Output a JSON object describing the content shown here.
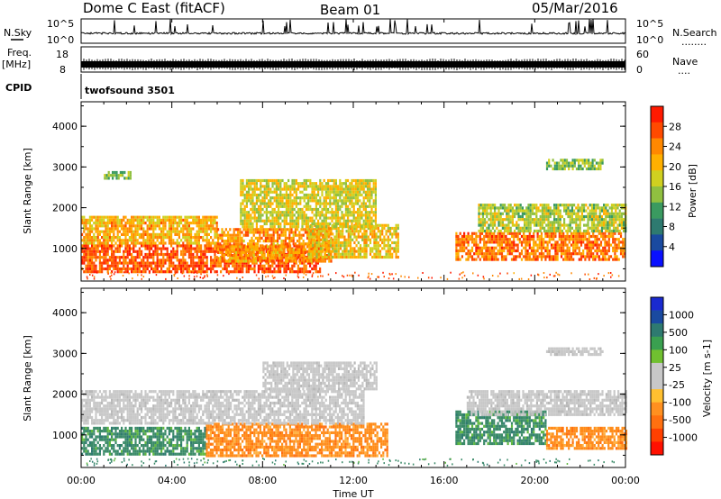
{
  "header": {
    "station": "Dome C East (fitACF)",
    "beam": "Beam 01",
    "date": "05/Mar/2016"
  },
  "nsky_panel": {
    "label": "N.Sky",
    "yticks": [
      "10^5",
      "10^0"
    ],
    "right_label": "N.Search",
    "right_dots": "........",
    "right_yticks": [
      "10^5",
      "10^0"
    ]
  },
  "freq_panel": {
    "label_top": "Freq.",
    "label_unit": "[MHz]",
    "yticks": [
      "18",
      "8"
    ],
    "right_label": "Nave",
    "right_dots": "....",
    "right_yticks": [
      "60",
      "0"
    ]
  },
  "cpid_panel": {
    "label": "CPID",
    "program": "twofsound 3501"
  },
  "power_panel": {
    "ylabel": "Slant Range [km]",
    "colorbar_label": "Power [dB]",
    "colorbar_ticks": [
      "28",
      "24",
      "20",
      "16",
      "12",
      "8",
      "4"
    ],
    "colorbar_colors": [
      "#ff1a00",
      "#ff4a00",
      "#ff8800",
      "#ffb000",
      "#d0d020",
      "#90c040",
      "#3a9a60",
      "#2e7a70",
      "#1a4aa0",
      "#0a10ff"
    ]
  },
  "velocity_panel": {
    "ylabel": "Slant Range [km]",
    "colorbar_label": "Velocity [m s-1]",
    "colorbar_ticks": [
      "1000",
      "500",
      "100",
      "25",
      "-25",
      "-100",
      "-500",
      "-1000"
    ],
    "colorbar_colors": [
      "#1a2ad0",
      "#1a4aa0",
      "#2e7a70",
      "#3aa050",
      "#70c030",
      "#c8c8c8",
      "#c8c8c8",
      "#ffc030",
      "#ff9020",
      "#ff7010",
      "#ff4000",
      "#ff1000"
    ]
  },
  "time_axis": {
    "xlabel": "Time UT",
    "ticks": [
      "00:00",
      "04:00",
      "08:00",
      "12:00",
      "16:00",
      "20:00",
      "00:00"
    ]
  },
  "chart_data": [
    {
      "type": "heatmap",
      "name_panel": "power",
      "x_range_hours": [
        0,
        24
      ],
      "ylim": [
        200,
        4600
      ],
      "yticks": [
        1000,
        2000,
        3000,
        4000
      ],
      "unit": "dB",
      "colorbar_range": [
        0,
        32
      ],
      "regions": [
        {
          "t0": 0.0,
          "t1": 10.5,
          "r0": 400,
          "r1": 1100,
          "value": 28
        },
        {
          "t0": 0.0,
          "t1": 6.0,
          "r0": 1100,
          "r1": 1800,
          "value": 22
        },
        {
          "t0": 6.0,
          "t1": 11.0,
          "r0": 700,
          "r1": 1500,
          "value": 24
        },
        {
          "t0": 10.0,
          "t1": 14.0,
          "r0": 800,
          "r1": 1600,
          "value": 20
        },
        {
          "t0": 7.0,
          "t1": 13.0,
          "r0": 1500,
          "r1": 2700,
          "value": 18
        },
        {
          "t0": 16.5,
          "t1": 24.0,
          "r0": 700,
          "r1": 1400,
          "value": 26
        },
        {
          "t0": 17.5,
          "t1": 24.0,
          "r0": 1400,
          "r1": 2100,
          "value": 16
        },
        {
          "t0": 1.0,
          "t1": 2.2,
          "r0": 2750,
          "r1": 2900,
          "value": 14
        },
        {
          "t0": 20.5,
          "t1": 23.0,
          "r0": 2950,
          "r1": 3200,
          "value": 14
        }
      ]
    },
    {
      "type": "heatmap",
      "name_panel": "velocity",
      "x_range_hours": [
        0,
        24
      ],
      "ylim": [
        200,
        4600
      ],
      "yticks": [
        1000,
        2000,
        3000,
        4000
      ],
      "unit": "m s-1",
      "regions": [
        {
          "t0": 0.0,
          "t1": 5.5,
          "r0": 500,
          "r1": 1200,
          "value": 100
        },
        {
          "t0": 5.5,
          "t1": 13.5,
          "r0": 500,
          "r1": 1300,
          "value": -100
        },
        {
          "t0": 0.0,
          "t1": 12.5,
          "r0": 1300,
          "r1": 2100,
          "value": 0
        },
        {
          "t0": 8.0,
          "t1": 13.0,
          "r0": 2100,
          "r1": 2800,
          "value": 0
        },
        {
          "t0": 16.5,
          "t1": 20.5,
          "r0": 800,
          "r1": 1600,
          "value": 100
        },
        {
          "t0": 20.5,
          "t1": 24.0,
          "r0": 700,
          "r1": 1200,
          "value": -100
        },
        {
          "t0": 17.0,
          "t1": 24.0,
          "r0": 1500,
          "r1": 2100,
          "value": 0
        },
        {
          "t0": 20.5,
          "t1": 23.0,
          "r0": 2950,
          "r1": 3150,
          "value": 0
        }
      ]
    }
  ]
}
